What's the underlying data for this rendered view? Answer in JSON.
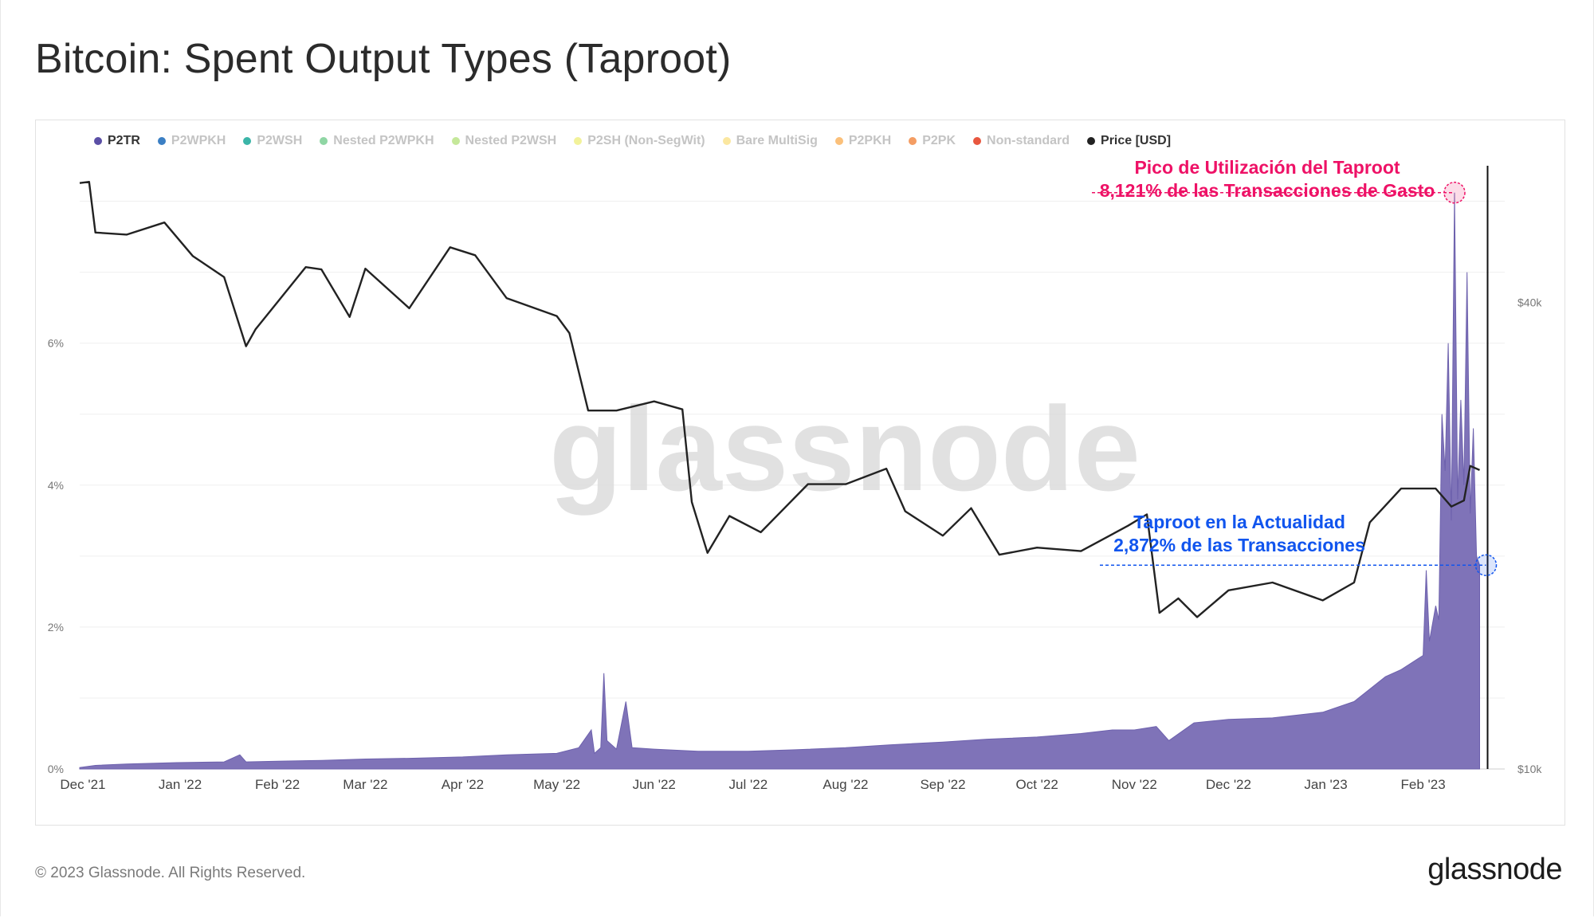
{
  "title": "Bitcoin: Spent Output Types (Taproot)",
  "footer": {
    "copyright": "© 2023 Glassnode. All Rights Reserved.",
    "logo": "glassnode"
  },
  "watermark": "glassnode",
  "legend": [
    {
      "label": "P2TR",
      "color": "#5b4fa6",
      "active": true
    },
    {
      "label": "P2WPKH",
      "color": "#3b7fc4",
      "active": false
    },
    {
      "label": "P2WSH",
      "color": "#3bb5a8",
      "active": false
    },
    {
      "label": "Nested P2WPKH",
      "color": "#8fd6a4",
      "active": false
    },
    {
      "label": "Nested P2WSH",
      "color": "#c5e89a",
      "active": false
    },
    {
      "label": "P2SH (Non-SegWit)",
      "color": "#f2f29a",
      "active": false
    },
    {
      "label": "Bare MultiSig",
      "color": "#fbe7a0",
      "active": false
    },
    {
      "label": "P2PKH",
      "color": "#fbc07a",
      "active": false
    },
    {
      "label": "P2PK",
      "color": "#f49d63",
      "active": false
    },
    {
      "label": "Non-standard",
      "color": "#e8573f",
      "active": false
    },
    {
      "label": "Price [USD]",
      "color": "#222222",
      "active": true
    }
  ],
  "annotations": {
    "peak": {
      "line1": "Pico de Utilización del Taproot",
      "line2": "8,121% de las Transacciones de Gasto",
      "color": "#ee1166"
    },
    "current": {
      "line1": "Taproot en la Actualidad",
      "line2": "2,872% de las Transacciones",
      "color": "#1155ee"
    }
  },
  "chart_data": {
    "type": "area",
    "x_tick_labels": [
      "Dec '21",
      "Jan '22",
      "Feb '22",
      "Mar '22",
      "Apr '22",
      "May '22",
      "Jun '22",
      "Jul '22",
      "Aug '22",
      "Sep '22",
      "Oct '22",
      "Nov '22",
      "Dec '22",
      "Jan '23",
      "Feb '23"
    ],
    "y_left": {
      "ticks": [
        0,
        2,
        4,
        6
      ],
      "tick_labels": [
        "0%",
        "2%",
        "4%",
        "6%"
      ],
      "lim": [
        0,
        8.5
      ]
    },
    "y_right": {
      "scale": "log",
      "ticks": [
        10000,
        40000
      ],
      "tick_labels": [
        "$10k",
        "$40k"
      ],
      "lim": [
        10000,
        60000
      ]
    },
    "grid": true,
    "x_range": [
      "2021-11-30",
      "2023-02-27"
    ],
    "series": [
      {
        "name": "P2TR",
        "axis": "left",
        "unit": "%",
        "color": "#7f73b8",
        "points": [
          [
            "2021-11-30",
            0.02
          ],
          [
            "2021-12-05",
            0.05
          ],
          [
            "2021-12-15",
            0.07
          ],
          [
            "2021-12-31",
            0.09
          ],
          [
            "2022-01-15",
            0.1
          ],
          [
            "2022-01-20",
            0.2
          ],
          [
            "2022-01-22",
            0.1
          ],
          [
            "2022-02-01",
            0.11
          ],
          [
            "2022-02-15",
            0.12
          ],
          [
            "2022-03-01",
            0.14
          ],
          [
            "2022-03-15",
            0.15
          ],
          [
            "2022-04-01",
            0.17
          ],
          [
            "2022-04-15",
            0.2
          ],
          [
            "2022-05-01",
            0.22
          ],
          [
            "2022-05-08",
            0.3
          ],
          [
            "2022-05-12",
            0.55
          ],
          [
            "2022-05-13",
            0.22
          ],
          [
            "2022-05-15",
            0.3
          ],
          [
            "2022-05-16",
            1.35
          ],
          [
            "2022-05-17",
            0.4
          ],
          [
            "2022-05-20",
            0.28
          ],
          [
            "2022-05-23",
            0.95
          ],
          [
            "2022-05-25",
            0.3
          ],
          [
            "2022-06-01",
            0.28
          ],
          [
            "2022-06-15",
            0.25
          ],
          [
            "2022-07-01",
            0.25
          ],
          [
            "2022-07-15",
            0.27
          ],
          [
            "2022-08-01",
            0.3
          ],
          [
            "2022-08-15",
            0.34
          ],
          [
            "2022-09-01",
            0.38
          ],
          [
            "2022-09-15",
            0.42
          ],
          [
            "2022-10-01",
            0.45
          ],
          [
            "2022-10-15",
            0.5
          ],
          [
            "2022-10-25",
            0.55
          ],
          [
            "2022-11-01",
            0.55
          ],
          [
            "2022-11-08",
            0.6
          ],
          [
            "2022-11-12",
            0.4
          ],
          [
            "2022-11-20",
            0.65
          ],
          [
            "2022-12-01",
            0.7
          ],
          [
            "2022-12-15",
            0.72
          ],
          [
            "2022-12-31",
            0.8
          ],
          [
            "2023-01-10",
            0.95
          ],
          [
            "2023-01-20",
            1.3
          ],
          [
            "2023-01-25",
            1.4
          ],
          [
            "2023-02-01",
            1.6
          ],
          [
            "2023-02-02",
            2.8
          ],
          [
            "2023-02-03",
            1.8
          ],
          [
            "2023-02-05",
            2.3
          ],
          [
            "2023-02-06",
            2.1
          ],
          [
            "2023-02-07",
            5.0
          ],
          [
            "2023-02-08",
            4.2
          ],
          [
            "2023-02-09",
            6.0
          ],
          [
            "2023-02-10",
            3.5
          ],
          [
            "2023-02-11",
            8.121
          ],
          [
            "2023-02-12",
            3.8
          ],
          [
            "2023-02-13",
            5.2
          ],
          [
            "2023-02-14",
            4.0
          ],
          [
            "2023-02-15",
            7.0
          ],
          [
            "2023-02-16",
            3.6
          ],
          [
            "2023-02-17",
            4.8
          ],
          [
            "2023-02-18",
            3.0
          ],
          [
            "2023-02-19",
            2.872
          ]
        ]
      },
      {
        "name": "Price [USD]",
        "axis": "right",
        "unit": "USD",
        "color": "#222222",
        "points": [
          [
            "2021-11-30",
            57000
          ],
          [
            "2021-12-03",
            57200
          ],
          [
            "2021-12-05",
            49200
          ],
          [
            "2021-12-15",
            48900
          ],
          [
            "2021-12-27",
            50700
          ],
          [
            "2022-01-05",
            45900
          ],
          [
            "2022-01-15",
            43100
          ],
          [
            "2022-01-22",
            35100
          ],
          [
            "2022-01-25",
            36900
          ],
          [
            "2022-02-10",
            44400
          ],
          [
            "2022-02-15",
            44100
          ],
          [
            "2022-02-24",
            38300
          ],
          [
            "2022-03-01",
            44200
          ],
          [
            "2022-03-15",
            39300
          ],
          [
            "2022-03-28",
            47100
          ],
          [
            "2022-04-05",
            46000
          ],
          [
            "2022-04-15",
            40500
          ],
          [
            "2022-05-01",
            38400
          ],
          [
            "2022-05-05",
            36500
          ],
          [
            "2022-05-11",
            29000
          ],
          [
            "2022-05-20",
            29000
          ],
          [
            "2022-06-01",
            29800
          ],
          [
            "2022-06-10",
            29100
          ],
          [
            "2022-06-13",
            22100
          ],
          [
            "2022-06-18",
            19000
          ],
          [
            "2022-06-25",
            21200
          ],
          [
            "2022-07-05",
            20200
          ],
          [
            "2022-07-20",
            23300
          ],
          [
            "2022-08-01",
            23300
          ],
          [
            "2022-08-14",
            24400
          ],
          [
            "2022-08-20",
            21500
          ],
          [
            "2022-09-01",
            20000
          ],
          [
            "2022-09-10",
            21700
          ],
          [
            "2022-09-19",
            18900
          ],
          [
            "2022-10-01",
            19300
          ],
          [
            "2022-10-15",
            19100
          ],
          [
            "2022-10-30",
            20600
          ],
          [
            "2022-11-05",
            21300
          ],
          [
            "2022-11-09",
            15900
          ],
          [
            "2022-11-15",
            16600
          ],
          [
            "2022-11-21",
            15700
          ],
          [
            "2022-12-01",
            17000
          ],
          [
            "2022-12-15",
            17400
          ],
          [
            "2022-12-31",
            16500
          ],
          [
            "2023-01-10",
            17400
          ],
          [
            "2023-01-15",
            20800
          ],
          [
            "2023-01-25",
            23000
          ],
          [
            "2023-02-05",
            23000
          ],
          [
            "2023-02-10",
            21800
          ],
          [
            "2023-02-14",
            22200
          ],
          [
            "2023-02-16",
            24600
          ],
          [
            "2023-02-19",
            24300
          ]
        ]
      }
    ]
  }
}
